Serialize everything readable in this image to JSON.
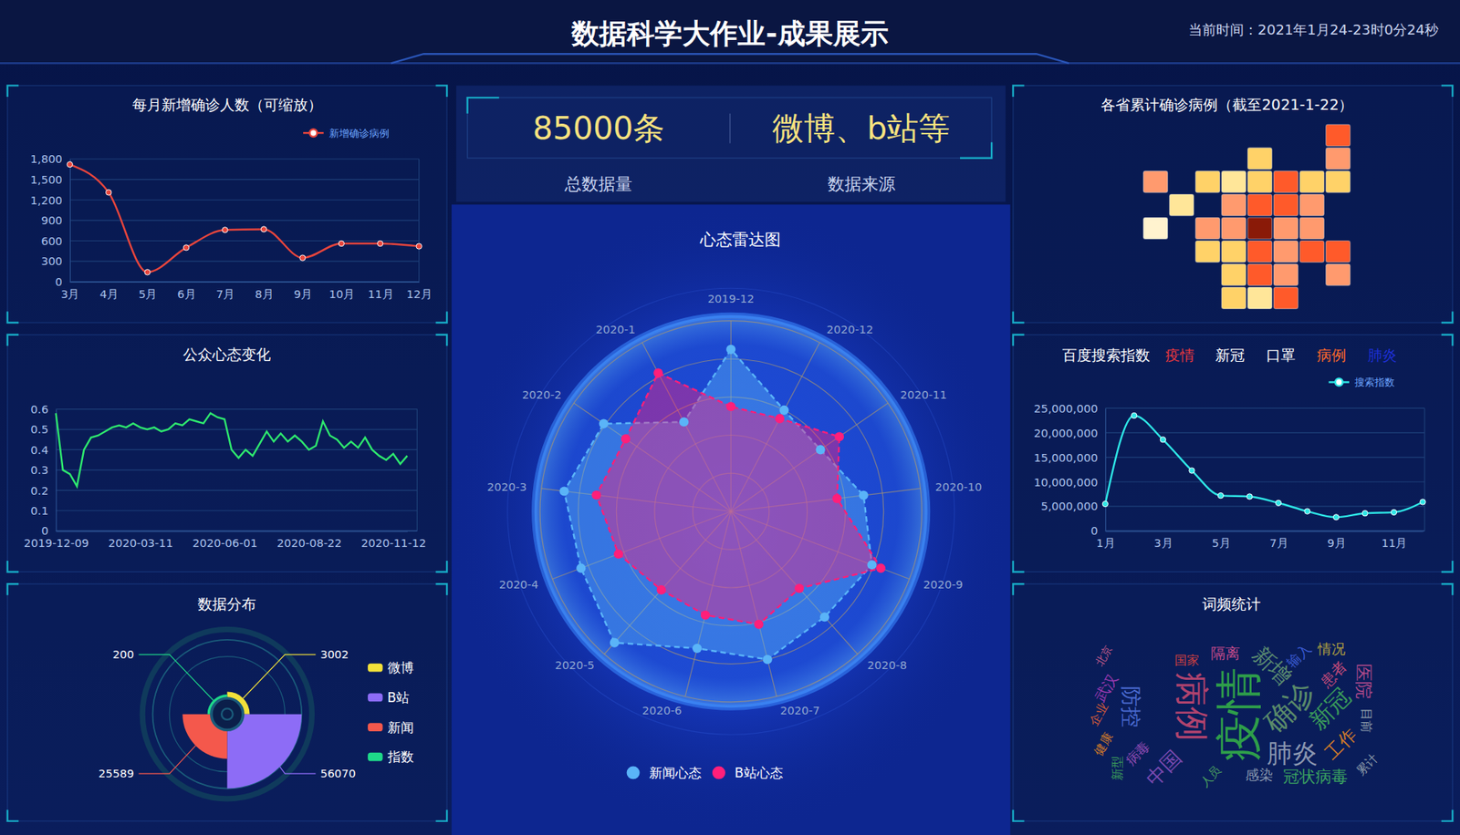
{
  "header": {
    "title": "数据科学大作业-成果展示",
    "time": "当前时间：2021年1月24-23时0分24秒"
  },
  "stats": [
    {
      "text": "85000条",
      "label": "总数据量"
    },
    {
      "text": "微博、b站等",
      "label": "数据来源"
    }
  ],
  "chart_data": [
    {
      "type": "line",
      "title": "每月新增确诊人数（可缩放）",
      "categories": [
        "3月",
        "4月",
        "5月",
        "6月",
        "7月",
        "8月",
        "9月",
        "10月",
        "11月",
        "12月"
      ],
      "series": [
        {
          "name": "新增确诊病例",
          "color": "#e8453c",
          "marker": "circle",
          "values": [
            1720,
            1310,
            140,
            500,
            760,
            770,
            350,
            560,
            560,
            520
          ]
        }
      ],
      "ylim": [
        0,
        1800
      ],
      "yticks": [
        0,
        300,
        600,
        900,
        {
          "value": 1200,
          "label": "1,200"
        },
        {
          "value": 1500,
          "label": "1,500"
        },
        {
          "value": 1800,
          "label": "1,800"
        }
      ],
      "grid": true,
      "legend": "top-right"
    },
    {
      "type": "line",
      "title": "公众心态变化",
      "categories": [
        "2019-12-09",
        null,
        null,
        null,
        null,
        null,
        null,
        null,
        null,
        null,
        null,
        null,
        "2020-03-11",
        null,
        null,
        null,
        null,
        null,
        null,
        null,
        null,
        null,
        null,
        null,
        "2020-06-01",
        null,
        null,
        null,
        null,
        null,
        null,
        null,
        null,
        null,
        null,
        null,
        "2020-08-22",
        null,
        null,
        null,
        null,
        null,
        null,
        null,
        null,
        null,
        null,
        null,
        "2020-11-12",
        null,
        null
      ],
      "values": [
        0.58,
        0.3,
        0.28,
        0.22,
        0.4,
        0.46,
        0.47,
        0.49,
        0.51,
        0.52,
        0.51,
        0.53,
        0.51,
        0.5,
        0.51,
        0.49,
        0.5,
        0.53,
        0.52,
        0.55,
        0.54,
        0.53,
        0.58,
        0.56,
        0.55,
        0.4,
        0.36,
        0.4,
        0.37,
        0.43,
        0.49,
        0.44,
        0.48,
        0.44,
        0.47,
        0.44,
        0.4,
        0.42,
        0.54,
        0.47,
        0.45,
        0.41,
        0.44,
        0.41,
        0.46,
        0.4,
        0.37,
        0.35,
        0.38,
        0.33,
        0.37
      ],
      "color": "#2ee86e",
      "ylim": [
        0,
        0.6
      ],
      "yticks": [
        0,
        0.1,
        0.2,
        0.3,
        0.4,
        0.5,
        0.6
      ],
      "grid": true
    },
    {
      "type": "rose",
      "title": "数据分布",
      "categories": [
        "微博",
        "B站",
        "新闻",
        "指数"
      ],
      "values": [
        3002,
        56070,
        25589,
        200
      ],
      "colors": [
        "#f2e13a",
        "#8d6cf6",
        "#f4584c",
        "#1ed989"
      ],
      "data_labels": true,
      "legend": "right"
    },
    {
      "type": "radar",
      "title": "心态雷达图",
      "categories": [
        "2019-12",
        "2020-1",
        "2020-2",
        "2020-3",
        "2020-4",
        "2020-5",
        "2020-6",
        "2020-7",
        "2020-8",
        "2020-9",
        "2020-10",
        "2020-11",
        "2020-12"
      ],
      "series": [
        {
          "name": "新闻心态",
          "color": "#5ab4f8",
          "marker": "circle",
          "line_style": "dashed",
          "values": [
            0.85,
            0.53,
            0.81,
            0.88,
            0.84,
            0.92,
            0.74,
            0.8,
            0.74,
            0.79,
            0.7,
            0.57,
            0.6
          ]
        },
        {
          "name": "B站心态",
          "color": "#ff1f7a",
          "marker": "circle",
          "line_style": "dashed",
          "values": [
            0.55,
            0.82,
            0.67,
            0.71,
            0.63,
            0.55,
            0.56,
            0.61,
            0.54,
            0.84,
            0.56,
            0.69,
            0.55
          ]
        }
      ],
      "ylim": [
        0,
        1
      ],
      "yticks": [
        0.2,
        0.4,
        0.6,
        0.8,
        1
      ],
      "tick_labels": false,
      "grid": true,
      "legend": "bottom"
    },
    {
      "type": "map",
      "title": "各省累计确诊病例（截至2021-1-22）",
      "values": [
        1610,
        570,
        390,
        330,
        980,
        1,
        18,
        182,
        75,
        530,
        222,
        1060,
        290,
        1270,
        850,
        1310,
        830,
        590,
        68149,
        993,
        680,
        230,
        147,
        1020,
        935,
        1300,
        1580,
        270,
        2140,
        520,
        890,
        171,
        47,
        10010
      ],
      "color_scale": {
        "breaks": [
          10,
          100,
          500,
          1000,
          20000
        ],
        "colors": [
          "#fff3cf",
          "#ffe699",
          "#ffd268",
          "#ff9a6e",
          "#ff5a2a",
          "#8a1a08"
        ]
      }
    },
    {
      "type": "line",
      "title": "百度搜索指数",
      "keywords": [
        {
          "label": "疫情",
          "color": "#e8383d"
        },
        {
          "label": "新冠",
          "color": "#ffffff"
        },
        {
          "label": "口罩",
          "color": "#ffffff"
        },
        {
          "label": "病例",
          "color": "#ff6a2a"
        },
        {
          "label": "肺炎",
          "color": "#1e2fd6"
        }
      ],
      "categories": [
        "1月",
        null,
        "3月",
        null,
        "5月",
        null,
        "7月",
        null,
        "9月",
        null,
        "11月",
        null
      ],
      "series": [
        {
          "name": "搜索指数",
          "color": "#2ee6e6",
          "marker": "circle",
          "values": [
            5500000,
            23500000,
            18600000,
            12300000,
            7200000,
            7000000,
            5700000,
            4000000,
            2800000,
            3600000,
            3800000,
            5900000
          ]
        }
      ],
      "ylim": [
        0,
        25000000
      ],
      "yticks": [
        0,
        {
          "value": 5000000,
          "label": "5,000,000"
        },
        {
          "value": 10000000,
          "label": "10,000,000"
        },
        {
          "value": 15000000,
          "label": "15,000,000"
        },
        {
          "value": 20000000,
          "label": "20,000,000"
        },
        {
          "value": 25000000,
          "label": "25,000,000"
        }
      ],
      "grid": true,
      "legend": "top-right"
    },
    {
      "type": "wordcloud",
      "title": "词频统计",
      "categories": [
        "疫情",
        "病例",
        "确诊",
        "肺炎",
        "新冠",
        "防控",
        "新增",
        "中国",
        "医院",
        "工作",
        "冠状病毒",
        "武汉",
        "隔离",
        "患者",
        "感染",
        "病毒",
        "输入",
        "情况",
        "国家",
        "企业",
        "健康",
        "新型",
        "累计",
        "目前",
        "人员",
        "北京"
      ],
      "values": [
        100,
        75,
        62,
        55,
        50,
        45,
        47,
        43,
        38,
        38,
        35,
        32,
        32,
        32,
        30,
        29,
        29,
        29,
        26,
        26,
        26,
        26,
        26,
        26,
        25,
        23
      ],
      "colors": [
        "#2e9e4a",
        "#b0436e",
        "#5a8a6a",
        "#8a96b0",
        "#3a9a5a",
        "#4a6ad0",
        "#5a8a70",
        "#7a4ab0",
        "#b04a8a",
        "#d07a2a",
        "#3aa060",
        "#9a3ab0",
        "#c04a8a",
        "#c04a7a",
        "#8a9ab0",
        "#8a4ab0",
        "#3a5ad0",
        "#b0a040",
        "#d04040",
        "#d05a3a",
        "#d07a2a",
        "#3a9a5a",
        "#8a9aa8",
        "#8a9aa8",
        "#4aa060",
        "#c05a8a"
      ]
    }
  ]
}
